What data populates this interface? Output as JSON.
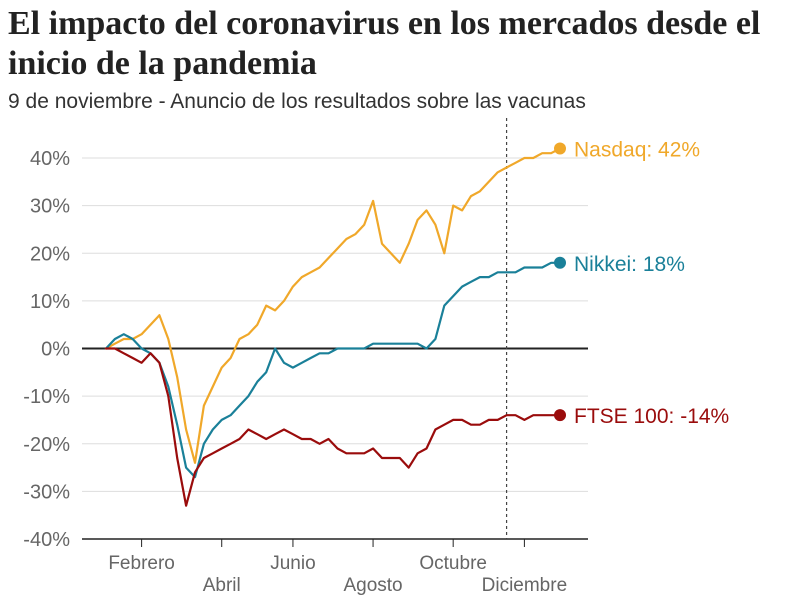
{
  "title": "El impacto del coronavirus en los mercados desde el inicio de la pandemia",
  "subtitle": "9 de noviembre - Anuncio de los resultados sobre las vacunas",
  "chart_data": {
    "type": "line",
    "title": "El impacto del coronavirus en los mercados desde el inicio de la pandemia",
    "subtitle": "9 de noviembre - Anuncio de los resultados sobre las vacunas",
    "x_unit": "week of 2020",
    "xlim": [
      1,
      52
    ],
    "ylim": [
      -40,
      45
    ],
    "y_ticks": [
      40,
      30,
      20,
      10,
      0,
      -10,
      -20,
      -30,
      -40
    ],
    "y_tick_labels": [
      "40%",
      "30%",
      "20%",
      "10%",
      "0%",
      "-10%",
      "-20%",
      "-30%",
      "-40%"
    ],
    "x_ticks": [
      {
        "label": "Febrero",
        "x": 5
      },
      {
        "label": "Abril",
        "x": 14
      },
      {
        "label": "Junio",
        "x": 22
      },
      {
        "label": "Agosto",
        "x": 31
      },
      {
        "label": "Octubre",
        "x": 40
      },
      {
        "label": "Diciembre",
        "x": 48
      }
    ],
    "annotation_line": {
      "x": 46,
      "text": "9 de noviembre - Anuncio de los resultados sobre las vacunas"
    },
    "grid": true,
    "series": [
      {
        "name": "Nasdaq",
        "end_label": "Nasdaq: 42%",
        "color": "#F0A82A",
        "x": [
          1,
          2,
          3,
          4,
          5,
          6,
          7,
          8,
          9,
          10,
          11,
          12,
          13,
          14,
          15,
          16,
          17,
          18,
          19,
          20,
          21,
          22,
          23,
          24,
          25,
          26,
          27,
          28,
          29,
          30,
          31,
          32,
          33,
          34,
          35,
          36,
          37,
          38,
          39,
          40,
          41,
          42,
          43,
          44,
          45,
          46,
          47,
          48,
          49,
          50,
          51,
          52
        ],
        "values": [
          0,
          1,
          2,
          2,
          3,
          5,
          7,
          2,
          -6,
          -17,
          -24,
          -12,
          -8,
          -4,
          -2,
          2,
          3,
          5,
          9,
          8,
          10,
          13,
          15,
          16,
          17,
          19,
          21,
          23,
          24,
          26,
          31,
          22,
          20,
          18,
          22,
          27,
          29,
          26,
          20,
          30,
          29,
          32,
          33,
          35,
          37,
          38,
          39,
          40,
          40,
          41,
          41,
          42
        ]
      },
      {
        "name": "Nikkei",
        "end_label": "Nikkei: 18%",
        "color": "#1A8099",
        "x": [
          1,
          2,
          3,
          4,
          5,
          6,
          7,
          8,
          9,
          10,
          11,
          12,
          13,
          14,
          15,
          16,
          17,
          18,
          19,
          20,
          21,
          22,
          23,
          24,
          25,
          26,
          27,
          28,
          29,
          30,
          31,
          32,
          33,
          34,
          35,
          36,
          37,
          38,
          39,
          40,
          41,
          42,
          43,
          44,
          45,
          46,
          47,
          48,
          49,
          50,
          51,
          52
        ],
        "values": [
          0,
          2,
          3,
          2,
          0,
          -1,
          -3,
          -8,
          -16,
          -25,
          -27,
          -20,
          -17,
          -15,
          -14,
          -12,
          -10,
          -7,
          -5,
          0,
          -3,
          -4,
          -3,
          -2,
          -1,
          -1,
          0,
          0,
          0,
          0,
          1,
          1,
          1,
          1,
          1,
          1,
          0,
          2,
          9,
          11,
          13,
          14,
          15,
          15,
          16,
          16,
          16,
          17,
          17,
          17,
          18,
          18
        ]
      },
      {
        "name": "FTSE 100",
        "end_label": "FTSE 100: -14%",
        "color": "#9A0C0C",
        "x": [
          1,
          2,
          3,
          4,
          5,
          6,
          7,
          8,
          9,
          10,
          11,
          12,
          13,
          14,
          15,
          16,
          17,
          18,
          19,
          20,
          21,
          22,
          23,
          24,
          25,
          26,
          27,
          28,
          29,
          30,
          31,
          32,
          33,
          34,
          35,
          36,
          37,
          38,
          39,
          40,
          41,
          42,
          43,
          44,
          45,
          46,
          47,
          48,
          49,
          50,
          51,
          52
        ],
        "values": [
          0,
          0,
          -1,
          -2,
          -3,
          -1,
          -3,
          -10,
          -23,
          -33,
          -26,
          -23,
          -22,
          -21,
          -20,
          -19,
          -17,
          -18,
          -19,
          -18,
          -17,
          -18,
          -19,
          -19,
          -20,
          -19,
          -21,
          -22,
          -22,
          -22,
          -21,
          -23,
          -23,
          -23,
          -25,
          -22,
          -21,
          -17,
          -16,
          -15,
          -15,
          -16,
          -16,
          -15,
          -15,
          -14,
          -14,
          -15,
          -14,
          -14,
          -14,
          -14
        ]
      }
    ]
  }
}
